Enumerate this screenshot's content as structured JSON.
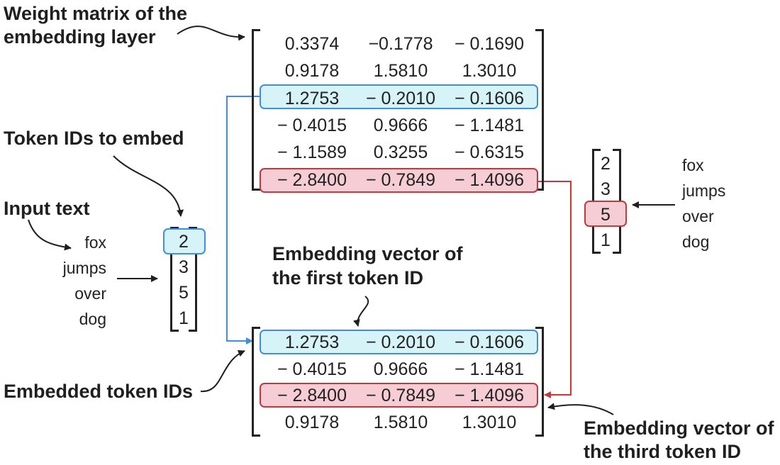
{
  "labels": {
    "weight_matrix": [
      "Weight matrix of the",
      "embedding layer"
    ],
    "token_ids": "Token IDs to embed",
    "input_text": "Input text",
    "embedded": "Embedded token IDs",
    "first_vector": [
      "Embedding vector of",
      "the first token ID"
    ],
    "third_vector": [
      "Embedding vector of",
      "the third token ID"
    ]
  },
  "weight_matrix": [
    [
      "0.3374",
      "−0.1778",
      "− 0.1690"
    ],
    [
      "0.9178",
      "1.5810",
      "1.3010"
    ],
    [
      "1.2753",
      "− 0.2010",
      "− 0.1606"
    ],
    [
      "− 0.4015",
      "0.9666",
      "− 1.1481"
    ],
    [
      "− 1.1589",
      "0.3255",
      "− 0.6315"
    ],
    [
      "− 2.8400",
      "− 0.7849",
      "− 1.4096"
    ]
  ],
  "embedded_matrix": [
    [
      "1.2753",
      "− 0.2010",
      "− 0.1606"
    ],
    [
      "− 0.4015",
      "0.9666",
      "− 1.1481"
    ],
    [
      "− 2.8400",
      "− 0.7849",
      "− 1.4096"
    ],
    [
      "0.9178",
      "1.5810",
      "1.3010"
    ]
  ],
  "input_words": [
    "fox",
    "jumps",
    "over",
    "dog"
  ],
  "token_ids": [
    "2",
    "3",
    "5",
    "1"
  ],
  "colors": {
    "highlight_blue": "#3f8ee0",
    "highlight_red": "#c0393d",
    "blue_fill": "#d6f3f8",
    "red_fill": "#f6cdd4"
  }
}
